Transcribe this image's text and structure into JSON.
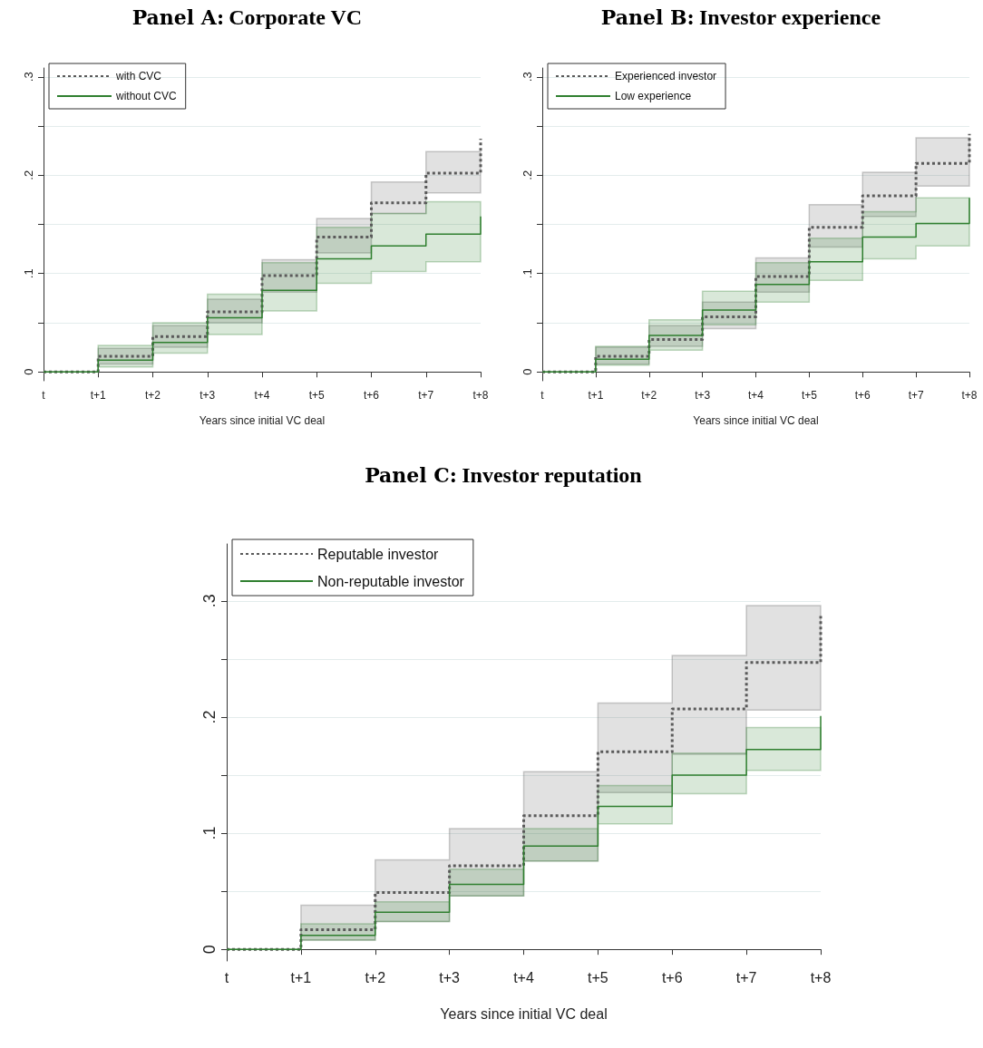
{
  "chart_data": [
    {
      "type": "step",
      "title": "Panel A: Corporate VC",
      "xlabel": "Years since initial VC deal",
      "categories": [
        "t",
        "t+1",
        "t+2",
        "t+3",
        "t+4",
        "t+5",
        "t+6",
        "t+7",
        "t+8"
      ],
      "ylim": [
        -0.009,
        0.309
      ],
      "yticks": [
        {
          "value": 0,
          "label": "0"
        },
        {
          "value": 0.05,
          "label": null
        },
        {
          "value": 0.1,
          "label": ".1"
        },
        {
          "value": 0.15,
          "label": null
        },
        {
          "value": 0.2,
          "label": ".2"
        },
        {
          "value": 0.25,
          "label": null
        },
        {
          "value": 0.3,
          "label": ".3"
        }
      ],
      "grid": "y",
      "legend": "top left",
      "series": [
        {
          "name": "with CVC",
          "color": "#5a5a5a",
          "line_style": "dotted",
          "values": [
            0,
            0.016,
            0.036,
            0.061,
            0.098,
            0.137,
            0.172,
            0.202,
            0.237
          ],
          "lower": [
            0,
            0.008,
            0.025,
            0.05,
            0.081,
            0.121,
            0.161,
            0.182,
            0.182
          ],
          "upper": [
            0,
            0.024,
            0.047,
            0.074,
            0.114,
            0.156,
            0.193,
            0.224,
            0.224
          ]
        },
        {
          "name": "without CVC",
          "color": "#2f7f2f",
          "line_style": "solid",
          "values": [
            0,
            0.012,
            0.03,
            0.055,
            0.083,
            0.115,
            0.128,
            0.14,
            0.158
          ],
          "lower": [
            0,
            0.005,
            0.019,
            0.038,
            0.062,
            0.09,
            0.102,
            0.112,
            0.112
          ],
          "upper": [
            0,
            0.027,
            0.05,
            0.079,
            0.111,
            0.147,
            0.161,
            0.173,
            0.173
          ]
        }
      ]
    },
    {
      "type": "step",
      "title": "Panel B: Investor experience",
      "xlabel": "Years since initial VC deal",
      "categories": [
        "t",
        "t+1",
        "t+2",
        "t+3",
        "t+4",
        "t+5",
        "t+6",
        "t+7",
        "t+8"
      ],
      "ylim": [
        -0.009,
        0.309
      ],
      "yticks": [
        {
          "value": 0,
          "label": "0"
        },
        {
          "value": 0.05,
          "label": null
        },
        {
          "value": 0.1,
          "label": ".1"
        },
        {
          "value": 0.15,
          "label": null
        },
        {
          "value": 0.2,
          "label": ".2"
        },
        {
          "value": 0.25,
          "label": null
        },
        {
          "value": 0.3,
          "label": ".3"
        }
      ],
      "grid": "y",
      "legend": "top left",
      "series": [
        {
          "name": "Experienced investor",
          "color": "#5a5a5a",
          "line_style": "dotted",
          "values": [
            0,
            0.016,
            0.033,
            0.056,
            0.097,
            0.147,
            0.179,
            0.212,
            0.242
          ],
          "lower": [
            0,
            0.008,
            0.026,
            0.044,
            0.081,
            0.127,
            0.158,
            0.189,
            0.189
          ],
          "upper": [
            0,
            0.025,
            0.047,
            0.071,
            0.116,
            0.17,
            0.203,
            0.238,
            0.238
          ]
        },
        {
          "name": "Low experience",
          "color": "#2f7f2f",
          "line_style": "solid",
          "values": [
            0,
            0.013,
            0.037,
            0.063,
            0.089,
            0.112,
            0.137,
            0.151,
            0.177
          ],
          "lower": [
            0,
            0.007,
            0.022,
            0.048,
            0.071,
            0.093,
            0.115,
            0.128,
            0.128
          ],
          "upper": [
            0,
            0.026,
            0.053,
            0.082,
            0.111,
            0.136,
            0.163,
            0.177,
            0.177
          ]
        }
      ]
    },
    {
      "type": "step",
      "title": "Panel C: Investor reputation",
      "xlabel": "Years since initial VC deal",
      "categories": [
        "t",
        "t+1",
        "t+2",
        "t+3",
        "t+4",
        "t+5",
        "t+6",
        "t+7",
        "t+8"
      ],
      "ylim": [
        -0.01,
        0.349
      ],
      "yticks": [
        {
          "value": 0,
          "label": "0"
        },
        {
          "value": 0.05,
          "label": null
        },
        {
          "value": 0.1,
          "label": ".1"
        },
        {
          "value": 0.15,
          "label": null
        },
        {
          "value": 0.2,
          "label": ".2"
        },
        {
          "value": 0.25,
          "label": null
        },
        {
          "value": 0.3,
          "label": ".3"
        }
      ],
      "grid": "y",
      "legend": "top left",
      "series": [
        {
          "name": "Reputable investor",
          "color": "#5a5a5a",
          "line_style": "dotted",
          "values": [
            0,
            0.017,
            0.049,
            0.072,
            0.115,
            0.17,
            0.207,
            0.247,
            0.287
          ],
          "lower": [
            0,
            0.008,
            0.024,
            0.046,
            0.076,
            0.135,
            0.168,
            0.206,
            0.206
          ],
          "upper": [
            0,
            0.038,
            0.077,
            0.104,
            0.153,
            0.212,
            0.253,
            0.296,
            0.296
          ]
        },
        {
          "name": "Non-reputable investor",
          "color": "#2f7f2f",
          "line_style": "solid",
          "values": [
            0,
            0.012,
            0.032,
            0.056,
            0.089,
            0.123,
            0.15,
            0.172,
            0.201
          ],
          "lower": [
            0,
            0.008,
            0.024,
            0.046,
            0.076,
            0.108,
            0.134,
            0.154,
            0.154
          ],
          "upper": [
            0,
            0.022,
            0.041,
            0.069,
            0.104,
            0.141,
            0.169,
            0.191,
            0.191
          ]
        }
      ]
    }
  ]
}
